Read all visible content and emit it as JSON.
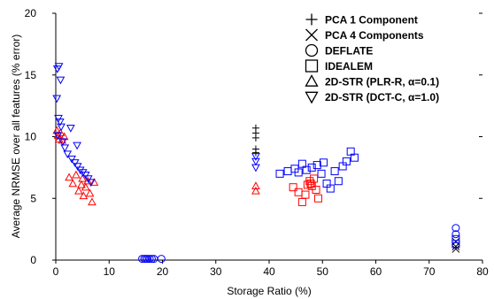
{
  "chart_data": {
    "type": "scatter",
    "xlabel": "Storage Ratio (%)",
    "ylabel": "Average NRMSE over all features (% error)",
    "xlim": [
      0,
      80
    ],
    "ylim": [
      0,
      20
    ],
    "xticks": [
      "0",
      "10",
      "20",
      "30",
      "40",
      "50",
      "60",
      "70",
      "80"
    ],
    "yticks": [
      "0",
      "5",
      "10",
      "15",
      "20"
    ],
    "grid": false,
    "legend_position": "top-right",
    "series": [
      {
        "name": "PCA  1  Component",
        "marker": "plus",
        "color": "#000000",
        "points": [
          {
            "x": 37.5,
            "y": 10.7
          },
          {
            "x": 37.5,
            "y": 10.3
          },
          {
            "x": 37.5,
            "y": 9.9
          },
          {
            "x": 37.5,
            "y": 9.0
          },
          {
            "x": 37.5,
            "y": 8.7
          }
        ]
      },
      {
        "name": "PCA  4  Components",
        "marker": "x",
        "color": "#000000",
        "points": [
          {
            "x": 75.0,
            "y": 1.5
          },
          {
            "x": 75.0,
            "y": 1.1
          },
          {
            "x": 75.0,
            "y": 0.9
          }
        ]
      },
      {
        "name": "DEFLATE",
        "marker": "circle",
        "color": "#0000ff",
        "points": [
          {
            "x": 16.2,
            "y": 0.1
          },
          {
            "x": 16.6,
            "y": 0.1
          },
          {
            "x": 16.9,
            "y": 0.1
          },
          {
            "x": 17.2,
            "y": 0.1
          },
          {
            "x": 17.6,
            "y": 0.1
          },
          {
            "x": 18.0,
            "y": 0.1
          },
          {
            "x": 18.4,
            "y": 0.1
          },
          {
            "x": 19.8,
            "y": 0.1
          },
          {
            "x": 75.0,
            "y": 2.6
          },
          {
            "x": 75.0,
            "y": 2.1
          }
        ]
      },
      {
        "name": "IDEALEM",
        "marker": "square",
        "color": "#0000ff",
        "points": [
          {
            "x": 42.0,
            "y": 7.0
          },
          {
            "x": 43.5,
            "y": 7.2
          },
          {
            "x": 44.8,
            "y": 7.4
          },
          {
            "x": 45.5,
            "y": 7.1
          },
          {
            "x": 46.2,
            "y": 7.8
          },
          {
            "x": 47.0,
            "y": 7.3
          },
          {
            "x": 48.0,
            "y": 7.5
          },
          {
            "x": 49.0,
            "y": 7.7
          },
          {
            "x": 49.8,
            "y": 7.0
          },
          {
            "x": 50.2,
            "y": 7.9
          },
          {
            "x": 50.8,
            "y": 6.2
          },
          {
            "x": 51.5,
            "y": 5.8
          },
          {
            "x": 52.3,
            "y": 7.2
          },
          {
            "x": 53.0,
            "y": 6.4
          },
          {
            "x": 53.8,
            "y": 7.6
          },
          {
            "x": 54.5,
            "y": 8.0
          },
          {
            "x": 55.3,
            "y": 8.8
          },
          {
            "x": 56.0,
            "y": 8.3
          },
          {
            "x": 75.0,
            "y": 1.7
          },
          {
            "x": 75.0,
            "y": 1.3
          }
        ]
      },
      {
        "name": "IDEALEM (red)",
        "marker": "square",
        "color": "#ff0000",
        "points": [
          {
            "x": 44.5,
            "y": 5.9
          },
          {
            "x": 45.5,
            "y": 5.5
          },
          {
            "x": 46.2,
            "y": 4.7
          },
          {
            "x": 46.8,
            "y": 5.3
          },
          {
            "x": 47.2,
            "y": 6.1
          },
          {
            "x": 47.6,
            "y": 6.4
          },
          {
            "x": 48.0,
            "y": 6.0
          },
          {
            "x": 48.4,
            "y": 6.6
          },
          {
            "x": 48.8,
            "y": 5.7
          },
          {
            "x": 49.2,
            "y": 5.0
          },
          {
            "x": 47.8,
            "y": 6.2
          }
        ]
      },
      {
        "name": "2D-STR  (PLR-R,  α=0.1)",
        "marker": "triangle-up",
        "color": "#ff0000",
        "points": [
          {
            "x": 0.2,
            "y": 10.5
          },
          {
            "x": 0.4,
            "y": 10.1
          },
          {
            "x": 0.6,
            "y": 9.8
          },
          {
            "x": 0.9,
            "y": 10.3
          },
          {
            "x": 1.2,
            "y": 9.7
          },
          {
            "x": 1.6,
            "y": 10.0
          },
          {
            "x": 2.5,
            "y": 6.7
          },
          {
            "x": 3.2,
            "y": 6.2
          },
          {
            "x": 3.8,
            "y": 6.9
          },
          {
            "x": 4.3,
            "y": 5.6
          },
          {
            "x": 4.8,
            "y": 6.1
          },
          {
            "x": 5.2,
            "y": 5.2
          },
          {
            "x": 5.6,
            "y": 5.9
          },
          {
            "x": 6.0,
            "y": 6.4
          },
          {
            "x": 6.4,
            "y": 5.4
          },
          {
            "x": 6.8,
            "y": 4.7
          },
          {
            "x": 7.2,
            "y": 6.3
          },
          {
            "x": 5.0,
            "y": 6.6
          },
          {
            "x": 37.5,
            "y": 6.0
          },
          {
            "x": 37.5,
            "y": 5.6
          }
        ]
      },
      {
        "name": "2D-STR  (DCT-C,  α=1.0)",
        "marker": "triangle-down",
        "color": "#0000ff",
        "points": [
          {
            "x": 0.3,
            "y": 15.5
          },
          {
            "x": 0.6,
            "y": 15.7
          },
          {
            "x": 0.9,
            "y": 14.6
          },
          {
            "x": 0.2,
            "y": 13.1
          },
          {
            "x": 0.5,
            "y": 11.5
          },
          {
            "x": 0.8,
            "y": 11.2
          },
          {
            "x": 1.0,
            "y": 10.8
          },
          {
            "x": 0.4,
            "y": 10.1
          },
          {
            "x": 1.3,
            "y": 9.6
          },
          {
            "x": 1.7,
            "y": 9.1
          },
          {
            "x": 2.2,
            "y": 8.6
          },
          {
            "x": 3.0,
            "y": 8.2
          },
          {
            "x": 3.6,
            "y": 7.9
          },
          {
            "x": 4.1,
            "y": 7.6
          },
          {
            "x": 4.6,
            "y": 7.3
          },
          {
            "x": 5.1,
            "y": 7.1
          },
          {
            "x": 5.6,
            "y": 6.9
          },
          {
            "x": 6.1,
            "y": 6.6
          },
          {
            "x": 6.6,
            "y": 6.3
          },
          {
            "x": 4.0,
            "y": 9.3
          },
          {
            "x": 2.8,
            "y": 10.7
          },
          {
            "x": 37.5,
            "y": 7.5
          },
          {
            "x": 37.5,
            "y": 8.0
          },
          {
            "x": 37.5,
            "y": 8.4
          }
        ]
      }
    ]
  }
}
